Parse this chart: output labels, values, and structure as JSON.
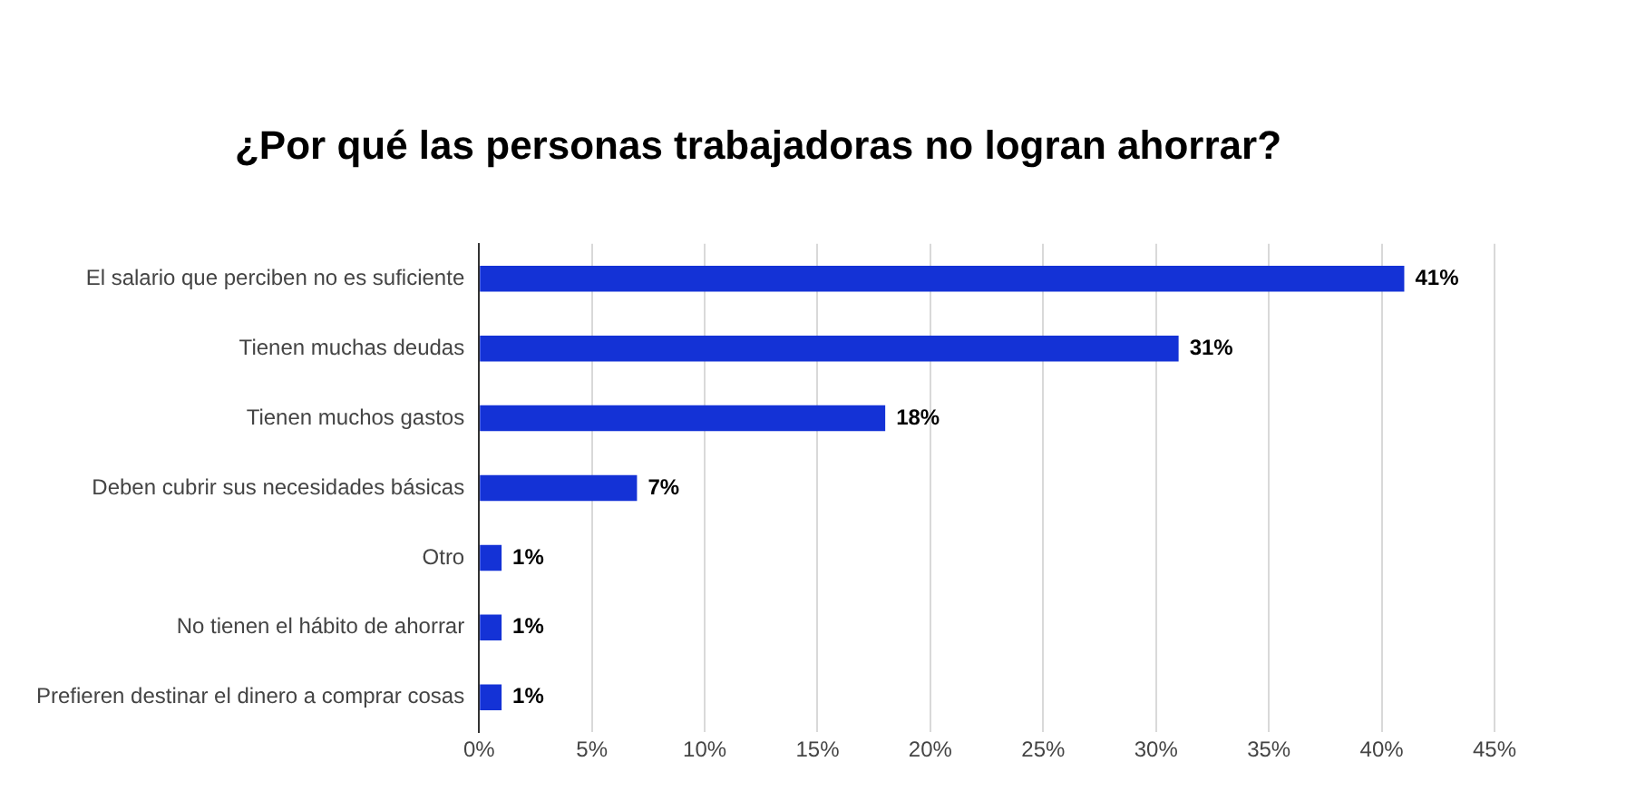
{
  "chart_data": {
    "type": "bar",
    "orientation": "horizontal",
    "title": "¿Por qué las personas trabajadoras no logran ahorrar?",
    "categories": [
      "El salario que perciben no es suficiente",
      "Tienen muchas deudas",
      "Tienen muchos gastos",
      "Deben cubrir sus necesidades básicas",
      "Otro",
      "No tienen el hábito de ahorrar",
      "Prefieren destinar el dinero a comprar cosas"
    ],
    "values": [
      41,
      31,
      18,
      7,
      1,
      1,
      1
    ],
    "value_labels": [
      "41%",
      "31%",
      "18%",
      "7%",
      "1%",
      "1%",
      "1%"
    ],
    "color": "#1432d6",
    "xlim": [
      0,
      45
    ],
    "xticks": [
      {
        "value": 0,
        "label": "0%"
      },
      {
        "value": 5,
        "label": "5%"
      },
      {
        "value": 10,
        "label": "10%"
      },
      {
        "value": 15,
        "label": "15%"
      },
      {
        "value": 20,
        "label": "20%"
      },
      {
        "value": 25,
        "label": "25%"
      },
      {
        "value": 30,
        "label": "30%"
      },
      {
        "value": 35,
        "label": "35%"
      },
      {
        "value": 40,
        "label": "40%"
      },
      {
        "value": 45,
        "label": "45%"
      }
    ],
    "grid": "x",
    "legend": false
  }
}
